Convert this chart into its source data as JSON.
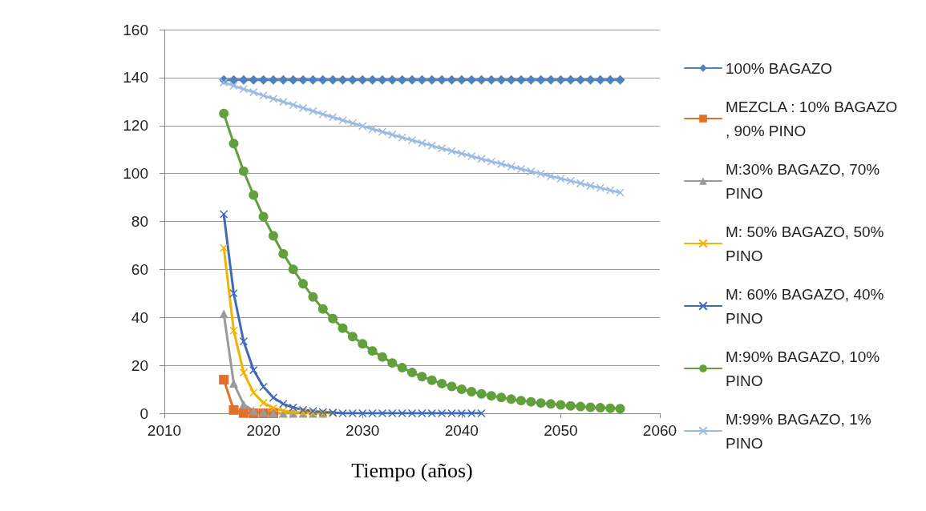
{
  "chart_data": {
    "type": "line",
    "xlabel": "Tiempo (años)",
    "xlim": [
      2010,
      2060
    ],
    "xticks": [
      2010,
      2020,
      2030,
      2040,
      2050,
      2060
    ],
    "ylim": [
      0,
      160
    ],
    "yticks": [
      0,
      20,
      40,
      60,
      80,
      100,
      120,
      140,
      160
    ],
    "grid": "y",
    "legend": "right",
    "series": [
      {
        "name": "100% BAGAZO",
        "color": "#4f81bd",
        "marker": "diamond",
        "x": [
          2016,
          2017,
          2018,
          2019,
          2020,
          2021,
          2022,
          2023,
          2024,
          2025,
          2026,
          2027,
          2028,
          2029,
          2030,
          2031,
          2032,
          2033,
          2034,
          2035,
          2036,
          2037,
          2038,
          2039,
          2040,
          2041,
          2042,
          2043,
          2044,
          2045,
          2046,
          2047,
          2048,
          2049,
          2050,
          2051,
          2052,
          2053,
          2054,
          2055,
          2056
        ],
        "values": [
          139,
          139,
          139,
          139,
          139,
          139,
          139,
          139,
          139,
          139,
          139,
          139,
          139,
          139,
          139,
          139,
          139,
          139,
          139,
          139,
          139,
          139,
          139,
          139,
          139,
          139,
          139,
          139,
          139,
          139,
          139,
          139,
          139,
          139,
          139,
          139,
          139,
          139,
          139,
          139,
          139
        ]
      },
      {
        "name": "MEZCLA : 10% BAGAZO, 90% PINO",
        "color": "#e0702a",
        "marker": "square",
        "x": [
          2016,
          2017,
          2018,
          2019,
          2020,
          2021
        ],
        "values": [
          14,
          1.4,
          0.1,
          0,
          0,
          0
        ]
      },
      {
        "name": "M:30% BAGAZO, 70% PINO",
        "color": "#9a9a9a",
        "marker": "triangle",
        "x": [
          2016,
          2017,
          2018,
          2019,
          2020,
          2021,
          2022,
          2023,
          2024,
          2025,
          2026
        ],
        "values": [
          41.5,
          12.5,
          3.7,
          1.1,
          0.3,
          0,
          0,
          0,
          0,
          0,
          0
        ]
      },
      {
        "name": "M: 50% BAGAZO, 50% PINO",
        "color": "#f0b400",
        "marker": "cross",
        "x": [
          2016,
          2017,
          2018,
          2019,
          2020,
          2021,
          2022,
          2023,
          2024,
          2025,
          2026,
          2027
        ],
        "values": [
          69,
          34.5,
          17,
          8.6,
          4.3,
          2.2,
          1.1,
          0.5,
          0.3,
          0.1,
          0,
          0
        ]
      },
      {
        "name": "M: 60% BAGAZO, 40% PINO",
        "color": "#4169b8",
        "marker": "cross",
        "x": [
          2016,
          2017,
          2018,
          2019,
          2020,
          2021,
          2022,
          2023,
          2024,
          2025,
          2026,
          2027,
          2028,
          2029,
          2030,
          2031,
          2032,
          2033,
          2034,
          2035,
          2036,
          2037,
          2038,
          2039,
          2040,
          2041,
          2042
        ],
        "values": [
          83,
          50,
          30,
          18,
          11,
          6.5,
          3.9,
          2.4,
          1.4,
          0.9,
          0.5,
          0.3,
          0,
          0,
          0,
          0,
          0,
          0,
          0,
          0,
          0,
          0,
          0,
          0,
          0,
          0,
          0
        ]
      },
      {
        "name": "M:90% BAGAZO, 10% PINO",
        "color": "#62a03d",
        "marker": "circle",
        "x": [
          2016,
          2017,
          2018,
          2019,
          2020,
          2021,
          2022,
          2023,
          2024,
          2025,
          2026,
          2027,
          2028,
          2029,
          2030,
          2031,
          2032,
          2033,
          2034,
          2035,
          2036,
          2037,
          2038,
          2039,
          2040,
          2041,
          2042,
          2043,
          2044,
          2045,
          2046,
          2047,
          2048,
          2049,
          2050,
          2051,
          2052,
          2053,
          2054,
          2055,
          2056
        ],
        "values": [
          125,
          112.5,
          101,
          91,
          82,
          74,
          66.5,
          60,
          54,
          48.5,
          43.5,
          39.5,
          35.5,
          32,
          29,
          26,
          23.5,
          21,
          19,
          17,
          15.3,
          13.8,
          12.4,
          11.2,
          10,
          9,
          8.1,
          7.3,
          6.6,
          5.9,
          5.3,
          4.8,
          4.3,
          3.9,
          3.5,
          3.1,
          2.8,
          2.5,
          2.3,
          2.1,
          1.9
        ]
      },
      {
        "name": "M:99% BAGAZO, 1% PINO",
        "color": "#9dbbe2",
        "marker": "cross",
        "x": [
          2016,
          2017,
          2018,
          2019,
          2020,
          2021,
          2022,
          2023,
          2024,
          2025,
          2026,
          2027,
          2028,
          2029,
          2030,
          2031,
          2032,
          2033,
          2034,
          2035,
          2036,
          2037,
          2038,
          2039,
          2040,
          2041,
          2042,
          2043,
          2044,
          2045,
          2046,
          2047,
          2048,
          2049,
          2050,
          2051,
          2052,
          2053,
          2054,
          2055,
          2056
        ],
        "values": [
          138,
          136.6,
          135.2,
          133.9,
          132.5,
          131.2,
          129.9,
          128.6,
          127.3,
          126,
          124.7,
          123.5,
          122.2,
          121,
          119.8,
          118.6,
          117.4,
          116.2,
          115,
          113.9,
          112.7,
          111.6,
          110.5,
          109.4,
          108.3,
          107.2,
          106.1,
          105,
          104,
          102.9,
          101.9,
          100.9,
          99.9,
          98.9,
          97.9,
          96.9,
          95.9,
          94.9,
          94,
          93,
          92
        ]
      }
    ]
  }
}
